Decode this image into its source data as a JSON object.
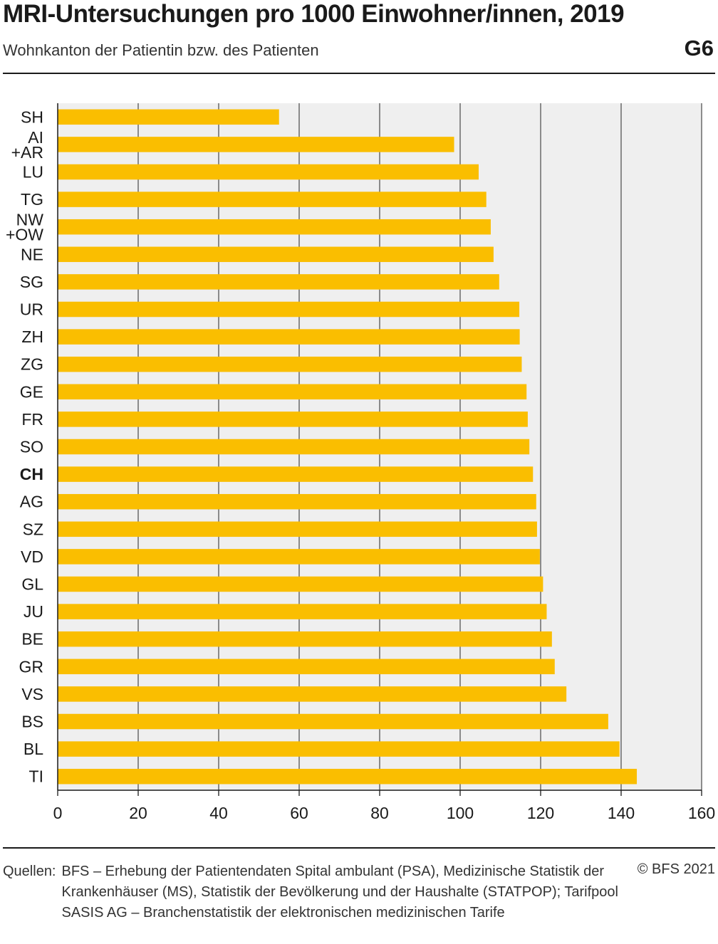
{
  "title": "MRI-Untersuchungen pro 1000 Einwohner/innen, 2019",
  "subtitle": "Wohnkanton der Patientin bzw. des Patienten",
  "graphic_id": "G6",
  "source_label": "Quellen:",
  "source_text": "BFS – Erhebung der Patientendaten Spital ambulant (PSA), Medizinische Statistik der Krankenhäuser (MS), Statistik der Bevölkerung und der Haushalte (STATPOP); Tarifpool SASIS AG – Branchenstatistik der elektronischen medizinischen Tarife",
  "copyright": "© BFS 2021",
  "colors": {
    "bar": "#fabe00",
    "plot_bg": "#efefef",
    "grid": "#555555",
    "text": "#1a1a1a"
  },
  "chart_data": {
    "type": "bar",
    "orientation": "horizontal",
    "categories": [
      "SH",
      "AI +AR",
      "LU",
      "TG",
      "NW +OW",
      "NE",
      "SG",
      "UR",
      "ZH",
      "ZG",
      "GE",
      "FR",
      "SO",
      "CH",
      "AG",
      "SZ",
      "VD",
      "GL",
      "JU",
      "BE",
      "GR",
      "VS",
      "BS",
      "BL",
      "TI"
    ],
    "values": [
      55,
      98.5,
      104.6,
      106.5,
      107.6,
      108.3,
      109.7,
      114.7,
      114.8,
      115.3,
      116.5,
      116.8,
      117.2,
      118.1,
      118.9,
      119.1,
      119.8,
      120.6,
      121.5,
      122.8,
      123.5,
      126.4,
      136.8,
      139.6,
      143.9
    ],
    "highlight": "CH",
    "xlim": [
      0,
      160
    ],
    "xticks": [
      0,
      20,
      40,
      60,
      80,
      100,
      120,
      140,
      160
    ],
    "grid": true
  }
}
